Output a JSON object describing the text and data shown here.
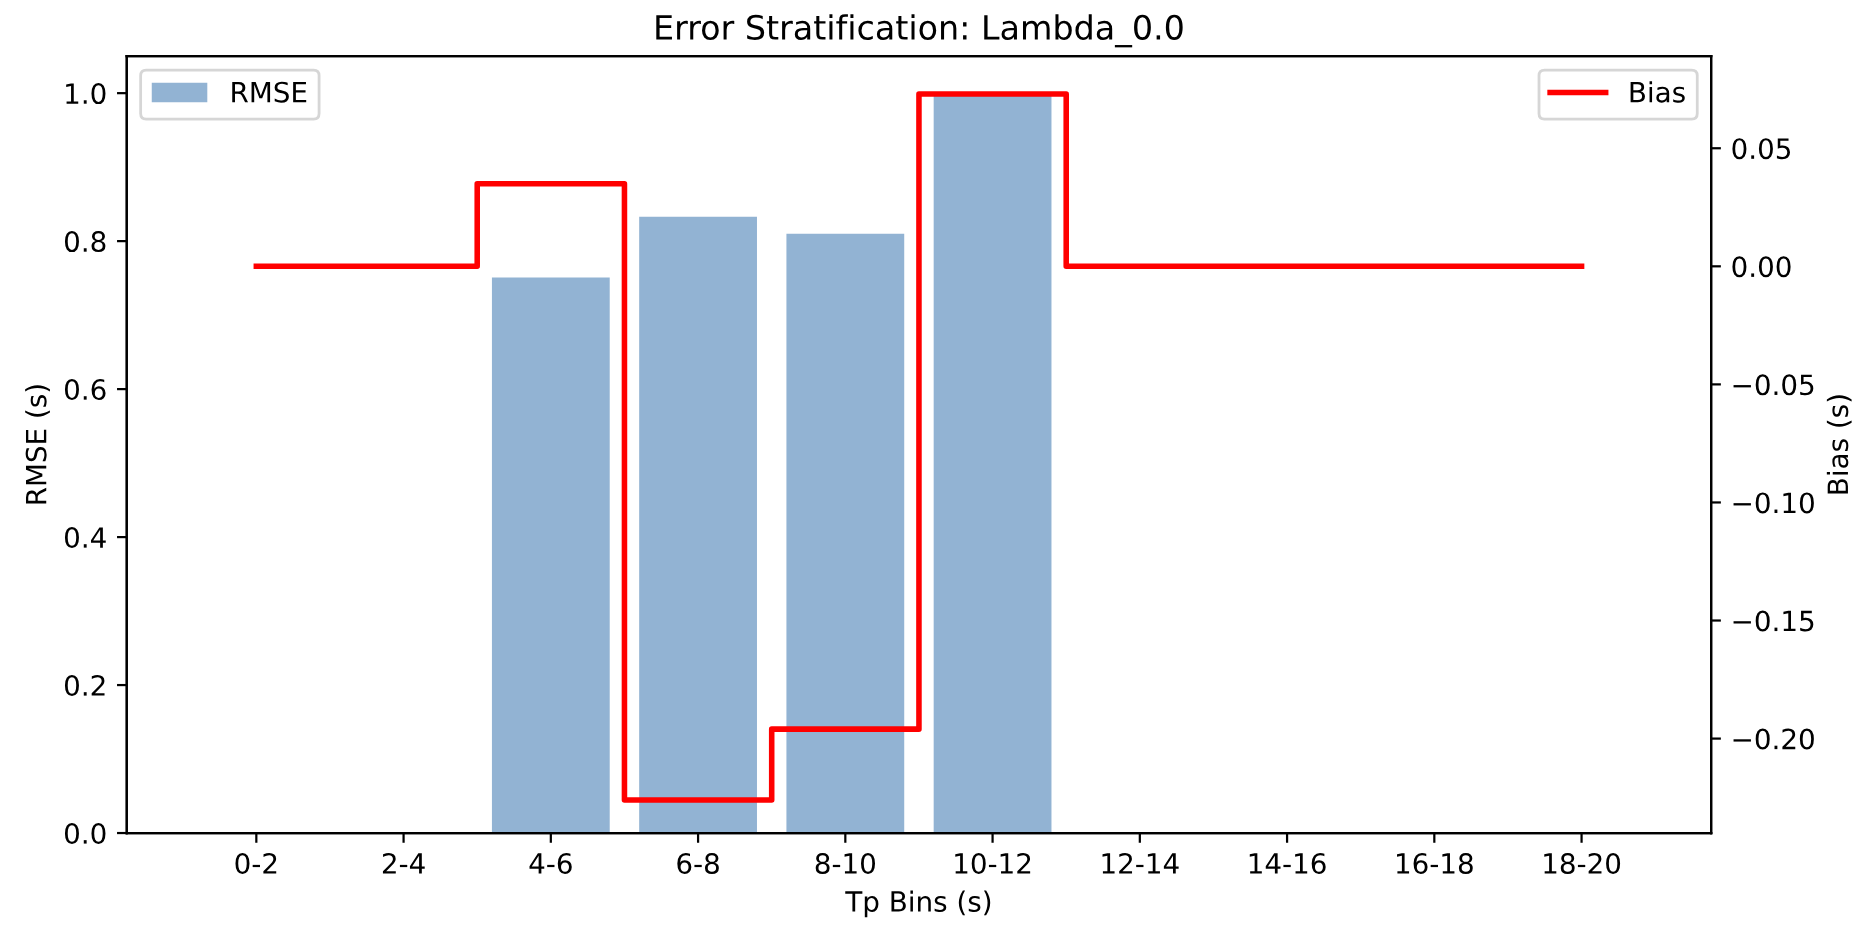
{
  "chart_data": {
    "type": "bar",
    "title": "Error Stratification: Lambda_0.0",
    "xlabel": "Tp Bins (s)",
    "ylabel": "RMSE (s)",
    "y2label": "Bias (s)",
    "categories": [
      "0-2",
      "2-4",
      "4-6",
      "6-8",
      "8-10",
      "10-12",
      "12-14",
      "14-16",
      "16-18",
      "18-20"
    ],
    "series": [
      {
        "name": "RMSE",
        "color": "#92b3d3",
        "values": [
          null,
          null,
          0.751,
          0.833,
          0.81,
          1.0,
          null,
          null,
          null,
          null
        ]
      },
      {
        "name": "Bias",
        "type": "step",
        "axis": "y2",
        "color": "#ff0000",
        "values": [
          0.0,
          0.0,
          0.035,
          -0.226,
          -0.196,
          0.073,
          0.0,
          0.0,
          0.0,
          0.0
        ]
      }
    ],
    "ylim": [
      0,
      1.05
    ],
    "yticks": [
      {
        "value": 0,
        "label": "0.0"
      },
      {
        "value": 0.2,
        "label": "0.2"
      },
      {
        "value": 0.4,
        "label": "0.4"
      },
      {
        "value": 0.6,
        "label": "0.6"
      },
      {
        "value": 0.8,
        "label": "0.8"
      },
      {
        "value": 1.0,
        "label": "1.0"
      }
    ],
    "y2lim": [
      -0.24,
      0.089
    ],
    "y2ticks": [
      {
        "value": -0.2,
        "label": "−0.20"
      },
      {
        "value": -0.15,
        "label": "−0.15"
      },
      {
        "value": -0.1,
        "label": "−0.10"
      },
      {
        "value": -0.05,
        "label": "−0.05"
      },
      {
        "value": 0,
        "label": "0.00"
      },
      {
        "value": 0.05,
        "label": "0.05"
      }
    ],
    "legend": "top",
    "grid": false
  }
}
